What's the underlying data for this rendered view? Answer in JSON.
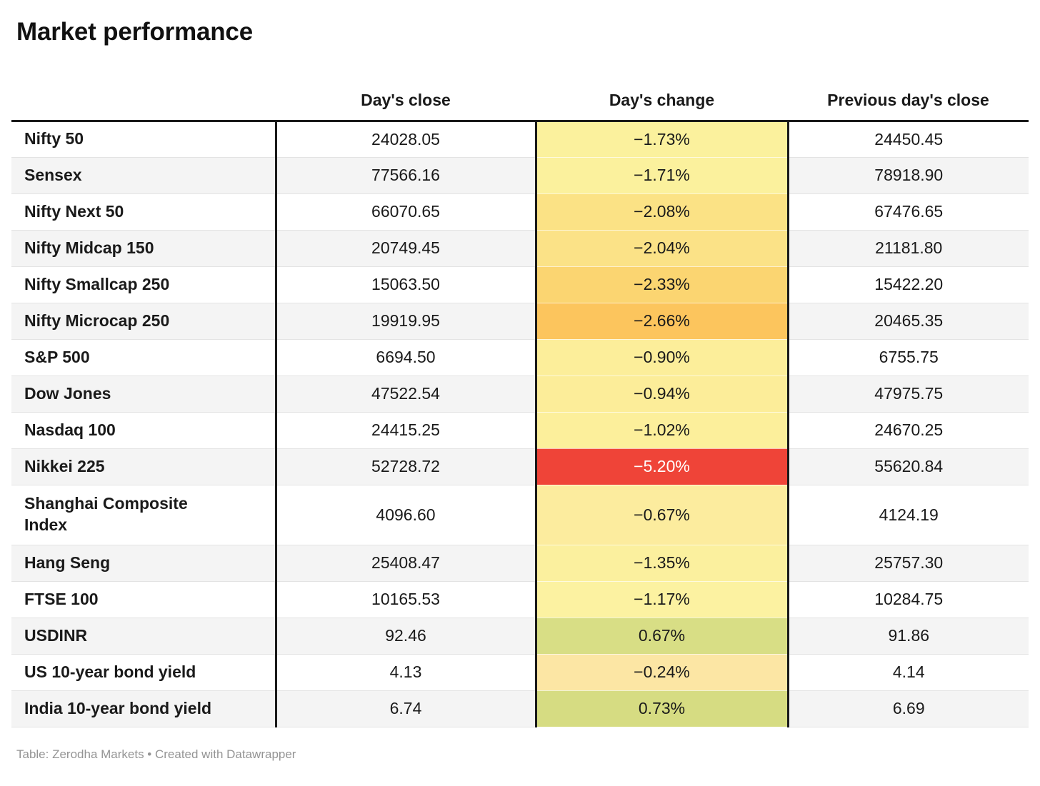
{
  "title": "Market performance",
  "footer": "Table: Zerodha Markets • Created with Datawrapper",
  "table": {
    "columns": [
      {
        "label": ""
      },
      {
        "label": "Day's close"
      },
      {
        "label": "Day's change"
      },
      {
        "label": "Previous day's close"
      }
    ],
    "rows": [
      {
        "label": "Nifty 50",
        "close": "24028.05",
        "change": "−1.73%",
        "prev": "24450.45",
        "change_bg": "#FBF19D",
        "change_text": "#1a1a1a"
      },
      {
        "label": "Sensex",
        "close": "77566.16",
        "change": "−1.71%",
        "prev": "78918.90",
        "change_bg": "#FBF19D",
        "change_text": "#1a1a1a"
      },
      {
        "label": "Nifty Next 50",
        "close": "66070.65",
        "change": "−2.08%",
        "prev": "67476.65",
        "change_bg": "#FBE285",
        "change_text": "#1a1a1a"
      },
      {
        "label": "Nifty Midcap 150",
        "close": "20749.45",
        "change": "−2.04%",
        "prev": "21181.80",
        "change_bg": "#FBE287",
        "change_text": "#1a1a1a"
      },
      {
        "label": "Nifty Smallcap 250",
        "close": "15063.50",
        "change": "−2.33%",
        "prev": "15422.20",
        "change_bg": "#FBD571",
        "change_text": "#1a1a1a"
      },
      {
        "label": "Nifty Microcap 250",
        "close": "19919.95",
        "change": "−2.66%",
        "prev": "20465.35",
        "change_bg": "#FCC55D",
        "change_text": "#1a1a1a"
      },
      {
        "label": "S&P 500",
        "close": "6694.50",
        "change": "−0.90%",
        "prev": "6755.75",
        "change_bg": "#FCEE9A",
        "change_text": "#1a1a1a"
      },
      {
        "label": "Dow Jones",
        "close": "47522.54",
        "change": "−0.94%",
        "prev": "47975.75",
        "change_bg": "#FCED99",
        "change_text": "#1a1a1a"
      },
      {
        "label": "Nasdaq 100",
        "close": "24415.25",
        "change": "−1.02%",
        "prev": "24670.25",
        "change_bg": "#FCEF9B",
        "change_text": "#1a1a1a"
      },
      {
        "label": "Nikkei 225",
        "close": "52728.72",
        "change": "−5.20%",
        "prev": "55620.84",
        "change_bg": "#EF4438",
        "change_text": "#ffffff"
      },
      {
        "label": "Shanghai Composite Index",
        "close": "4096.60",
        "change": "−0.67%",
        "prev": "4124.19",
        "change_bg": "#FCEC9E",
        "change_text": "#1a1a1a",
        "tall": true
      },
      {
        "label": "Hang Seng",
        "close": "25408.47",
        "change": "−1.35%",
        "prev": "25757.30",
        "change_bg": "#FBF09E",
        "change_text": "#1a1a1a"
      },
      {
        "label": "FTSE 100",
        "close": "10165.53",
        "change": "−1.17%",
        "prev": "10284.75",
        "change_bg": "#FCF2A1",
        "change_text": "#1a1a1a"
      },
      {
        "label": "USDINR",
        "close": "92.46",
        "change": "0.67%",
        "prev": "91.86",
        "change_bg": "#D8DE85",
        "change_text": "#1a1a1a"
      },
      {
        "label": "US 10-year bond yield",
        "close": "4.13",
        "change": "−0.24%",
        "prev": "4.14",
        "change_bg": "#FCE6A4",
        "change_text": "#1a1a1a"
      },
      {
        "label": "India 10-year bond yield",
        "close": "6.74",
        "change": "0.73%",
        "prev": "6.69",
        "change_bg": "#D6DC82",
        "change_text": "#1a1a1a"
      }
    ]
  },
  "colors": {
    "heavy_border": "#1a1a1a",
    "zebra_stripe": "#f4f4f4",
    "row_divider": "#e3e3e3",
    "footer_text": "#949494",
    "extreme_negative": "#EF4438",
    "positive_green": "#D8DE85",
    "mild_negative_yellow": "#FBF19D"
  },
  "chart_data": {
    "type": "table",
    "title": "Market performance",
    "columns": [
      "",
      "Day's close",
      "Day's change",
      "Previous day's close"
    ],
    "heatmap_column": "Day's change",
    "rows": [
      {
        "name": "Nifty 50",
        "days_close": 24028.05,
        "days_change_pct": -1.73,
        "previous_days_close": 24450.45
      },
      {
        "name": "Sensex",
        "days_close": 77566.16,
        "days_change_pct": -1.71,
        "previous_days_close": 78918.9
      },
      {
        "name": "Nifty Next 50",
        "days_close": 66070.65,
        "days_change_pct": -2.08,
        "previous_days_close": 67476.65
      },
      {
        "name": "Nifty Midcap 150",
        "days_close": 20749.45,
        "days_change_pct": -2.04,
        "previous_days_close": 21181.8
      },
      {
        "name": "Nifty Smallcap 250",
        "days_close": 15063.5,
        "days_change_pct": -2.33,
        "previous_days_close": 15422.2
      },
      {
        "name": "Nifty Microcap 250",
        "days_close": 19919.95,
        "days_change_pct": -2.66,
        "previous_days_close": 20465.35
      },
      {
        "name": "S&P 500",
        "days_close": 6694.5,
        "days_change_pct": -0.9,
        "previous_days_close": 6755.75
      },
      {
        "name": "Dow Jones",
        "days_close": 47522.54,
        "days_change_pct": -0.94,
        "previous_days_close": 47975.75
      },
      {
        "name": "Nasdaq 100",
        "days_close": 24415.25,
        "days_change_pct": -1.02,
        "previous_days_close": 24670.25
      },
      {
        "name": "Nikkei 225",
        "days_close": 52728.72,
        "days_change_pct": -5.2,
        "previous_days_close": 55620.84
      },
      {
        "name": "Shanghai Composite Index",
        "days_close": 4096.6,
        "days_change_pct": -0.67,
        "previous_days_close": 4124.19
      },
      {
        "name": "Hang Seng",
        "days_close": 25408.47,
        "days_change_pct": -1.35,
        "previous_days_close": 25757.3
      },
      {
        "name": "FTSE 100",
        "days_close": 10165.53,
        "days_change_pct": -1.17,
        "previous_days_close": 10284.75
      },
      {
        "name": "USDINR",
        "days_close": 92.46,
        "days_change_pct": 0.67,
        "previous_days_close": 91.86
      },
      {
        "name": "US 10-year bond yield",
        "days_close": 4.13,
        "days_change_pct": -0.24,
        "previous_days_close": 4.14
      },
      {
        "name": "India 10-year bond yield",
        "days_close": 6.74,
        "days_change_pct": 0.73,
        "previous_days_close": 6.69
      }
    ],
    "source": "Zerodha Markets",
    "created_with": "Datawrapper"
  }
}
